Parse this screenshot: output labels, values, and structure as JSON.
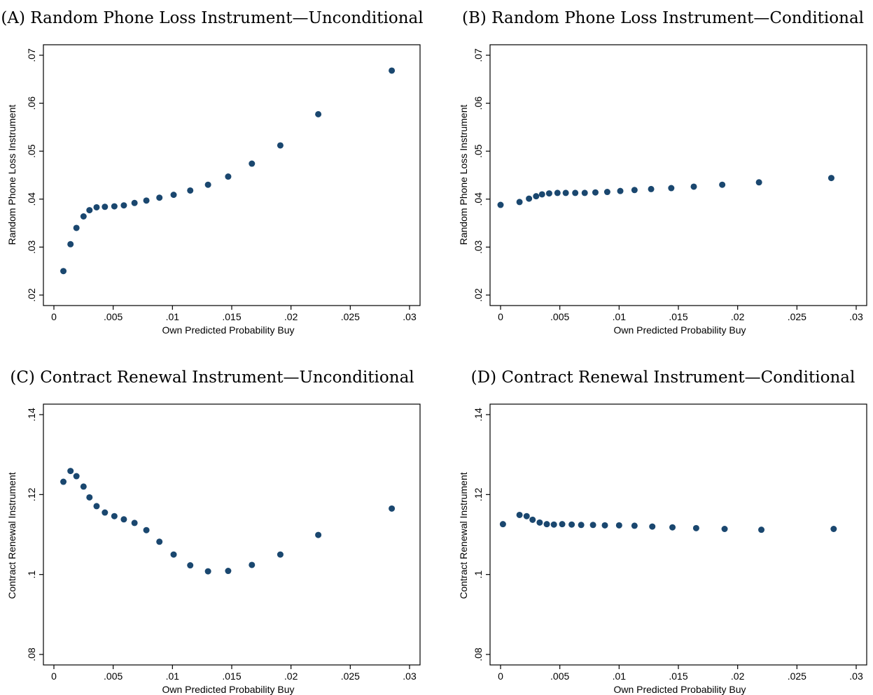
{
  "colors": {
    "marker": "#1a476f",
    "axis": "#000000",
    "background": "#ffffff"
  },
  "chart_data": [
    {
      "type": "scatter",
      "title": "(A)  Random Phone Loss Instrument—Unconditional",
      "xlabel": "Own Predicted Probability Buy",
      "ylabel": "Random Phone Loss Instrument",
      "xlim": [
        0,
        0.03
      ],
      "ylim": [
        0.02,
        0.07
      ],
      "xticks": [
        {
          "v": 0,
          "label": "0"
        },
        {
          "v": 0.005,
          "label": ".005"
        },
        {
          "v": 0.01,
          "label": ".01"
        },
        {
          "v": 0.015,
          "label": ".015"
        },
        {
          "v": 0.02,
          "label": ".02"
        },
        {
          "v": 0.025,
          "label": ".025"
        },
        {
          "v": 0.03,
          "label": ".03"
        }
      ],
      "yticks": [
        {
          "v": 0.02,
          "label": ".02"
        },
        {
          "v": 0.03,
          "label": ".03"
        },
        {
          "v": 0.04,
          "label": ".04"
        },
        {
          "v": 0.05,
          "label": ".05"
        },
        {
          "v": 0.06,
          "label": ".06"
        },
        {
          "v": 0.07,
          "label": ".07"
        }
      ],
      "grid": false,
      "x": [
        0.0008,
        0.0014,
        0.0019,
        0.0025,
        0.003,
        0.0036,
        0.0043,
        0.0051,
        0.0059,
        0.0068,
        0.0078,
        0.0089,
        0.0101,
        0.0115,
        0.013,
        0.0147,
        0.0167,
        0.0191,
        0.0223,
        0.0285
      ],
      "y": [
        0.025,
        0.0306,
        0.034,
        0.0364,
        0.0377,
        0.0383,
        0.0384,
        0.0385,
        0.0387,
        0.0392,
        0.0397,
        0.0403,
        0.0409,
        0.0418,
        0.043,
        0.0447,
        0.0474,
        0.0512,
        0.0577,
        0.0668
      ]
    },
    {
      "type": "scatter",
      "title": "(B)  Random Phone Loss Instrument—Conditional",
      "xlabel": "Own Predicted Probability Buy",
      "ylabel": "Random Phone Loss Instrument",
      "xlim": [
        0,
        0.03
      ],
      "ylim": [
        0.02,
        0.07
      ],
      "xticks": [
        {
          "v": 0,
          "label": "0"
        },
        {
          "v": 0.005,
          "label": ".005"
        },
        {
          "v": 0.01,
          "label": ".01"
        },
        {
          "v": 0.015,
          "label": ".015"
        },
        {
          "v": 0.02,
          "label": ".02"
        },
        {
          "v": 0.025,
          "label": ".025"
        },
        {
          "v": 0.03,
          "label": ".03"
        }
      ],
      "yticks": [
        {
          "v": 0.02,
          "label": ".02"
        },
        {
          "v": 0.03,
          "label": ".03"
        },
        {
          "v": 0.04,
          "label": ".04"
        },
        {
          "v": 0.05,
          "label": ".05"
        },
        {
          "v": 0.06,
          "label": ".06"
        },
        {
          "v": 0.07,
          "label": ".07"
        }
      ],
      "grid": false,
      "x": [
        0.0,
        0.0016,
        0.0024,
        0.003,
        0.0035,
        0.0041,
        0.0048,
        0.0055,
        0.0063,
        0.0071,
        0.008,
        0.009,
        0.0101,
        0.0113,
        0.0127,
        0.0144,
        0.0163,
        0.0187,
        0.0218,
        0.0279
      ],
      "y": [
        0.0388,
        0.0394,
        0.0401,
        0.0406,
        0.041,
        0.0412,
        0.0413,
        0.0413,
        0.0413,
        0.0413,
        0.0414,
        0.0415,
        0.0417,
        0.0419,
        0.0421,
        0.0423,
        0.0426,
        0.043,
        0.0435,
        0.0444
      ]
    },
    {
      "type": "scatter",
      "title": "(C)  Contract Renewal Instrument—Unconditional",
      "xlabel": "Own Predicted Probability Buy",
      "ylabel": "Contract Renewal Instrument",
      "xlim": [
        0,
        0.03
      ],
      "ylim": [
        0.08,
        0.14
      ],
      "xticks": [
        {
          "v": 0,
          "label": "0"
        },
        {
          "v": 0.005,
          "label": ".005"
        },
        {
          "v": 0.01,
          "label": ".01"
        },
        {
          "v": 0.015,
          "label": ".015"
        },
        {
          "v": 0.02,
          "label": ".02"
        },
        {
          "v": 0.025,
          "label": ".025"
        },
        {
          "v": 0.03,
          "label": ".03"
        }
      ],
      "yticks": [
        {
          "v": 0.08,
          "label": ".08"
        },
        {
          "v": 0.1,
          "label": ".1"
        },
        {
          "v": 0.12,
          "label": ".12"
        },
        {
          "v": 0.14,
          "label": ".14"
        }
      ],
      "grid": false,
      "x": [
        0.0008,
        0.0014,
        0.0019,
        0.0025,
        0.003,
        0.0036,
        0.0043,
        0.0051,
        0.0059,
        0.0068,
        0.0078,
        0.0089,
        0.0101,
        0.0115,
        0.013,
        0.0147,
        0.0167,
        0.0191,
        0.0223,
        0.0285
      ],
      "y": [
        0.1232,
        0.1259,
        0.1246,
        0.122,
        0.1193,
        0.1171,
        0.1155,
        0.1146,
        0.1138,
        0.1129,
        0.1111,
        0.1082,
        0.105,
        0.1023,
        0.1008,
        0.1009,
        0.1024,
        0.105,
        0.1099,
        0.1165
      ]
    },
    {
      "type": "scatter",
      "title": "(D)  Contract Renewal Instrument—Conditional",
      "xlabel": "Own Predicted Probability Buy",
      "ylabel": "Contract Renewal Instrument",
      "xlim": [
        0,
        0.03
      ],
      "ylim": [
        0.08,
        0.14
      ],
      "xticks": [
        {
          "v": 0,
          "label": "0"
        },
        {
          "v": 0.005,
          "label": ".005"
        },
        {
          "v": 0.01,
          "label": ".01"
        },
        {
          "v": 0.015,
          "label": ".015"
        },
        {
          "v": 0.02,
          "label": ".02"
        },
        {
          "v": 0.025,
          "label": ".025"
        },
        {
          "v": 0.03,
          "label": ".03"
        }
      ],
      "yticks": [
        {
          "v": 0.08,
          "label": ".08"
        },
        {
          "v": 0.1,
          "label": ".1"
        },
        {
          "v": 0.12,
          "label": ".12"
        },
        {
          "v": 0.14,
          "label": ".14"
        }
      ],
      "grid": false,
      "x": [
        0.0002,
        0.0016,
        0.0022,
        0.0027,
        0.0033,
        0.0039,
        0.0045,
        0.0052,
        0.006,
        0.0068,
        0.0078,
        0.0088,
        0.01,
        0.0113,
        0.0128,
        0.0145,
        0.0165,
        0.0189,
        0.022,
        0.0281
      ],
      "y": [
        0.1126,
        0.1149,
        0.1146,
        0.1137,
        0.113,
        0.1126,
        0.1125,
        0.1126,
        0.1125,
        0.1124,
        0.1124,
        0.1123,
        0.1123,
        0.1122,
        0.112,
        0.1118,
        0.1116,
        0.1114,
        0.1112,
        0.1114
      ]
    }
  ]
}
